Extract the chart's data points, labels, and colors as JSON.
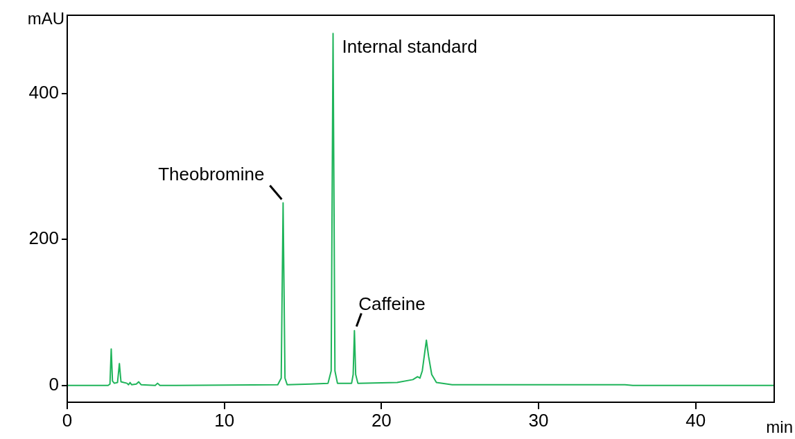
{
  "chart_data": {
    "type": "line",
    "xlabel": "min",
    "ylabel": "mAU",
    "xlim": [
      0,
      45
    ],
    "xticks": [
      0,
      10,
      20,
      30,
      40
    ],
    "ylim": [
      -23,
      507
    ],
    "yticks": [
      0,
      200,
      400
    ],
    "grid": false,
    "legend": false,
    "marker": "none",
    "line_style": "solid",
    "series": [
      {
        "color": "#1fb45a",
        "x": [
          0,
          2.6,
          2.72,
          2.8,
          2.88,
          3.0,
          3.2,
          3.32,
          3.42,
          3.6,
          3.8,
          3.9,
          4.0,
          4.1,
          4.4,
          4.55,
          4.7,
          5.6,
          5.75,
          5.9,
          13.4,
          13.62,
          13.74,
          13.86,
          14.0,
          15.5,
          16.6,
          16.8,
          16.92,
          17.04,
          17.2,
          18.1,
          18.2,
          18.28,
          18.36,
          18.5,
          21.0,
          22.0,
          22.3,
          22.45,
          22.6,
          22.86,
          23.0,
          23.2,
          23.5,
          24.5,
          35.5,
          36,
          45
        ],
        "values": [
          0,
          0,
          2,
          50,
          6,
          3,
          4,
          30,
          5,
          4,
          3,
          1,
          4,
          1,
          2,
          5,
          1,
          0,
          3,
          0,
          1,
          10,
          250,
          10,
          1,
          2,
          3,
          20,
          482,
          20,
          3,
          3,
          15,
          75,
          15,
          3,
          4,
          8,
          12,
          10,
          20,
          62,
          40,
          15,
          4,
          1,
          1,
          0,
          0
        ]
      }
    ],
    "annotations": [
      {
        "text": "Theobromine",
        "x": 13.74,
        "y": 250
      },
      {
        "text": "Internal standard",
        "x": 16.92,
        "y": 482
      },
      {
        "text": "Caffeine",
        "x": 18.28,
        "y": 75
      }
    ]
  }
}
